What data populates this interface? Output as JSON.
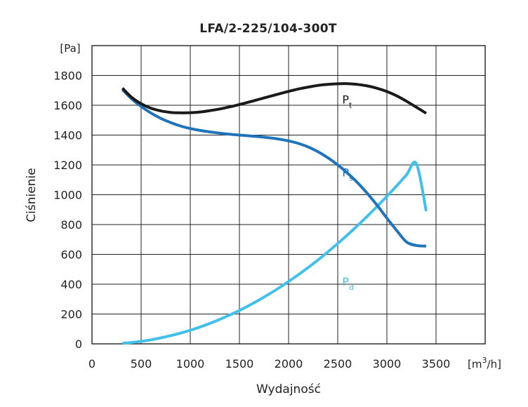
{
  "chart_data": {
    "type": "line",
    "title": "LFA/2-225/104-300T",
    "xlabel": "Wydajność",
    "ylabel": "Ciśnienie",
    "x_unit_label": {
      "base": "[m",
      "sup": "3",
      "tail": "/h]"
    },
    "y_unit_label": "[Pa]",
    "xlim": [
      0,
      4000
    ],
    "ylim": [
      0,
      2000
    ],
    "x_ticks": [
      0,
      500,
      1000,
      1500,
      2000,
      2500,
      3000,
      3500
    ],
    "y_ticks": [
      0,
      200,
      400,
      600,
      800,
      1000,
      1200,
      1400,
      1600,
      1800
    ],
    "grid": true,
    "series": [
      {
        "name": "Pt",
        "label_main": "P",
        "label_sub": "t",
        "color": "#1a1a1a",
        "label_at": [
          2560,
          1640
        ],
        "points": [
          [
            310,
            1715
          ],
          [
            400,
            1655
          ],
          [
            500,
            1610
          ],
          [
            600,
            1580
          ],
          [
            700,
            1562
          ],
          [
            800,
            1552
          ],
          [
            900,
            1549
          ],
          [
            1000,
            1550
          ],
          [
            1100,
            1555
          ],
          [
            1200,
            1564
          ],
          [
            1300,
            1575
          ],
          [
            1400,
            1589
          ],
          [
            1500,
            1605
          ],
          [
            1600,
            1622
          ],
          [
            1700,
            1640
          ],
          [
            1800,
            1658
          ],
          [
            1900,
            1676
          ],
          [
            2000,
            1693
          ],
          [
            2100,
            1709
          ],
          [
            2200,
            1722
          ],
          [
            2300,
            1733
          ],
          [
            2400,
            1740
          ],
          [
            2500,
            1744
          ],
          [
            2600,
            1745
          ],
          [
            2700,
            1740
          ],
          [
            2800,
            1730
          ],
          [
            2900,
            1714
          ],
          [
            3000,
            1692
          ],
          [
            3100,
            1663
          ],
          [
            3200,
            1627
          ],
          [
            3300,
            1587
          ],
          [
            3400,
            1546
          ]
        ]
      },
      {
        "name": "Ps",
        "label_main": "P",
        "label_sub": "s",
        "color": "#1f74bb",
        "label_at": [
          2560,
          1150
        ],
        "points": [
          [
            310,
            1705
          ],
          [
            400,
            1645
          ],
          [
            500,
            1592
          ],
          [
            600,
            1548
          ],
          [
            700,
            1512
          ],
          [
            800,
            1484
          ],
          [
            900,
            1461
          ],
          [
            1000,
            1444
          ],
          [
            1100,
            1431
          ],
          [
            1200,
            1421
          ],
          [
            1300,
            1413
          ],
          [
            1400,
            1406
          ],
          [
            1500,
            1400
          ],
          [
            1600,
            1395
          ],
          [
            1700,
            1389
          ],
          [
            1800,
            1382
          ],
          [
            1900,
            1373
          ],
          [
            2000,
            1361
          ],
          [
            2100,
            1344
          ],
          [
            2200,
            1320
          ],
          [
            2300,
            1288
          ],
          [
            2400,
            1248
          ],
          [
            2500,
            1200
          ],
          [
            2600,
            1145
          ],
          [
            2700,
            1082
          ],
          [
            2800,
            1010
          ],
          [
            2900,
            930
          ],
          [
            3000,
            843
          ],
          [
            3100,
            760
          ],
          [
            3200,
            683
          ],
          [
            3300,
            660
          ],
          [
            3400,
            655
          ]
        ]
      },
      {
        "name": "Pd",
        "label_main": "P",
        "label_sub": "d",
        "color": "#41c0ec",
        "label_at": [
          2560,
          420
        ],
        "points": [
          [
            310,
            4
          ],
          [
            400,
            9
          ],
          [
            500,
            17
          ],
          [
            600,
            27
          ],
          [
            700,
            40
          ],
          [
            800,
            55
          ],
          [
            900,
            72
          ],
          [
            1000,
            91
          ],
          [
            1100,
            113
          ],
          [
            1200,
            137
          ],
          [
            1300,
            164
          ],
          [
            1400,
            193
          ],
          [
            1500,
            224
          ],
          [
            1600,
            258
          ],
          [
            1700,
            294
          ],
          [
            1800,
            333
          ],
          [
            1900,
            374
          ],
          [
            2000,
            418
          ],
          [
            2100,
            464
          ],
          [
            2200,
            512
          ],
          [
            2300,
            563
          ],
          [
            2400,
            617
          ],
          [
            2500,
            673
          ],
          [
            2600,
            731
          ],
          [
            2700,
            792
          ],
          [
            2800,
            855
          ],
          [
            2900,
            921
          ],
          [
            3000,
            989
          ],
          [
            3100,
            1060
          ],
          [
            3200,
            1133
          ],
          [
            3300,
            1209
          ],
          [
            3400,
            890
          ]
        ]
      }
    ]
  }
}
